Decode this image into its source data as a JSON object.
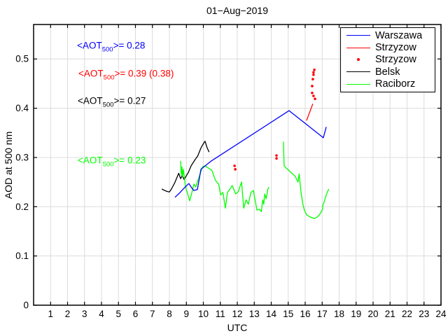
{
  "chart_data": {
    "type": "line",
    "title": "01−Aug−2019",
    "xlabel": "UTC",
    "ylabel": "AOD at 500 nm",
    "xlim": [
      0,
      24
    ],
    "ylim": [
      0,
      0.57
    ],
    "xticks": [
      1,
      2,
      3,
      4,
      5,
      6,
      7,
      8,
      9,
      10,
      11,
      12,
      13,
      14,
      15,
      16,
      17,
      18,
      19,
      20,
      21,
      22,
      23,
      24
    ],
    "yticks": [
      0,
      0.1,
      0.2,
      0.3,
      0.4,
      0.5
    ],
    "ytick_labels": [
      "0",
      "0.1",
      "0.2",
      "0.3",
      "0.4",
      "0.5"
    ],
    "grid": true,
    "grid_color": "#dcdcdc",
    "legend_position": "top-right",
    "legend": {
      "entries": [
        {
          "label": "Warszawa",
          "marker": "line",
          "color": "#0000ff"
        },
        {
          "label": "Strzyzow",
          "marker": "line",
          "color": "#ff0000"
        },
        {
          "label": "Strzyzow",
          "marker": "dot",
          "color": "#ff0000"
        },
        {
          "label": "Belsk",
          "marker": "line",
          "color": "#000000"
        },
        {
          "label": "Raciborz",
          "marker": "line",
          "color": "#00ff00"
        }
      ]
    },
    "annotations": [
      {
        "prefix": "<AOT",
        "sub": "500",
        "suffix": ">= 0.28",
        "color": "#0000ff",
        "anchor": [
          2.56,
          0.524
        ]
      },
      {
        "prefix": "<AOT",
        "sub": "500",
        "suffix": ">= 0.39 (0.38)",
        "color": "#ff0000",
        "anchor": [
          2.64,
          0.468
        ]
      },
      {
        "prefix": "<AOT",
        "sub": "500",
        "suffix": ">= 0.27",
        "color": "#000000",
        "anchor": [
          2.6,
          0.412
        ]
      },
      {
        "prefix": "<AOT",
        "sub": "500",
        "suffix": ">= 0.23",
        "color": "#00ff00",
        "anchor": [
          2.6,
          0.291
        ]
      }
    ],
    "series": [
      {
        "name": "Belsk",
        "type": "line",
        "color": "#000000",
        "points": [
          [
            7.55,
            0.236
          ],
          [
            7.72,
            0.233
          ],
          [
            7.87,
            0.231
          ],
          [
            8.0,
            0.23
          ],
          [
            8.12,
            0.236
          ],
          [
            8.32,
            0.249
          ],
          [
            8.55,
            0.268
          ],
          [
            8.66,
            0.257
          ],
          [
            8.76,
            0.263
          ],
          [
            8.87,
            0.255
          ],
          [
            8.98,
            0.262
          ],
          [
            9.12,
            0.27
          ],
          [
            9.28,
            0.283
          ],
          [
            9.5,
            0.295
          ],
          [
            9.67,
            0.303
          ],
          [
            9.87,
            0.32
          ],
          [
            10.02,
            0.329
          ],
          [
            10.1,
            0.333
          ],
          [
            10.22,
            0.32
          ],
          [
            10.34,
            0.311
          ]
        ]
      },
      {
        "name": "Raciborz",
        "type": "line",
        "color": "#00ff00",
        "segments": [
          [
            [
              8.66,
              0.293
            ],
            [
              8.7,
              0.264
            ],
            [
              8.74,
              0.281
            ],
            [
              8.78,
              0.261
            ],
            [
              8.83,
              0.276
            ],
            [
              8.95,
              0.24
            ],
            [
              9.05,
              0.229
            ],
            [
              9.2,
              0.212
            ],
            [
              9.45,
              0.246
            ],
            [
              9.55,
              0.24
            ],
            [
              9.95,
              0.281
            ],
            [
              10.1,
              0.283
            ],
            [
              10.5,
              0.274
            ],
            [
              10.72,
              0.253
            ],
            [
              10.9,
              0.246
            ],
            [
              11.02,
              0.224
            ],
            [
              11.15,
              0.229
            ],
            [
              11.3,
              0.197
            ],
            [
              11.42,
              0.229
            ],
            [
              11.55,
              0.235
            ],
            [
              11.7,
              0.243
            ],
            [
              11.9,
              0.226
            ],
            [
              12.05,
              0.23
            ],
            [
              12.25,
              0.25
            ],
            [
              12.38,
              0.197
            ],
            [
              12.52,
              0.214
            ],
            [
              12.65,
              0.205
            ],
            [
              12.8,
              0.229
            ],
            [
              12.95,
              0.233
            ],
            [
              13.16,
              0.193
            ],
            [
              13.3,
              0.195
            ],
            [
              13.42,
              0.19
            ],
            [
              13.5,
              0.214
            ],
            [
              13.56,
              0.205
            ],
            [
              13.62,
              0.226
            ],
            [
              13.7,
              0.216
            ],
            [
              13.8,
              0.236
            ],
            [
              13.86,
              0.24
            ]
          ],
          [
            [
              14.72,
              0.332
            ],
            [
              14.76,
              0.283
            ],
            [
              14.9,
              0.278
            ],
            [
              15.15,
              0.27
            ],
            [
              15.4,
              0.262
            ],
            [
              15.58,
              0.25
            ],
            [
              15.64,
              0.267
            ],
            [
              15.75,
              0.231
            ],
            [
              15.85,
              0.207
            ],
            [
              15.95,
              0.193
            ],
            [
              16.1,
              0.183
            ],
            [
              16.3,
              0.179
            ],
            [
              16.55,
              0.176
            ],
            [
              16.7,
              0.179
            ],
            [
              16.85,
              0.184
            ],
            [
              17.0,
              0.193
            ],
            [
              17.06,
              0.205
            ],
            [
              17.12,
              0.21
            ],
            [
              17.22,
              0.222
            ],
            [
              17.32,
              0.231
            ],
            [
              17.4,
              0.236
            ]
          ]
        ]
      },
      {
        "name": "Warszawa",
        "type": "line",
        "color": "#0000ff",
        "points": [
          [
            8.33,
            0.219
          ],
          [
            8.6,
            0.228
          ],
          [
            8.9,
            0.239
          ],
          [
            9.15,
            0.247
          ],
          [
            9.28,
            0.24
          ],
          [
            9.44,
            0.233
          ],
          [
            9.65,
            0.235
          ],
          [
            9.86,
            0.276
          ],
          [
            10.47,
            0.293
          ],
          [
            15.05,
            0.395
          ],
          [
            17.07,
            0.34
          ],
          [
            17.24,
            0.362
          ]
        ]
      },
      {
        "name": "Strzyzow",
        "type": "line",
        "color": "#ff0000",
        "points": [
          [
            16.08,
            0.375
          ],
          [
            16.45,
            0.409
          ]
        ]
      },
      {
        "name": "Strzyzow",
        "type": "scatter",
        "color": "#ff0000",
        "points": [
          [
            11.84,
            0.283
          ],
          [
            11.88,
            0.276
          ],
          [
            14.31,
            0.304
          ],
          [
            14.31,
            0.298
          ],
          [
            16.58,
            0.419
          ],
          [
            16.49,
            0.425
          ],
          [
            16.41,
            0.431
          ],
          [
            16.41,
            0.445
          ],
          [
            16.45,
            0.459
          ],
          [
            16.49,
            0.468
          ],
          [
            16.49,
            0.473
          ],
          [
            16.54,
            0.478
          ]
        ]
      }
    ]
  }
}
